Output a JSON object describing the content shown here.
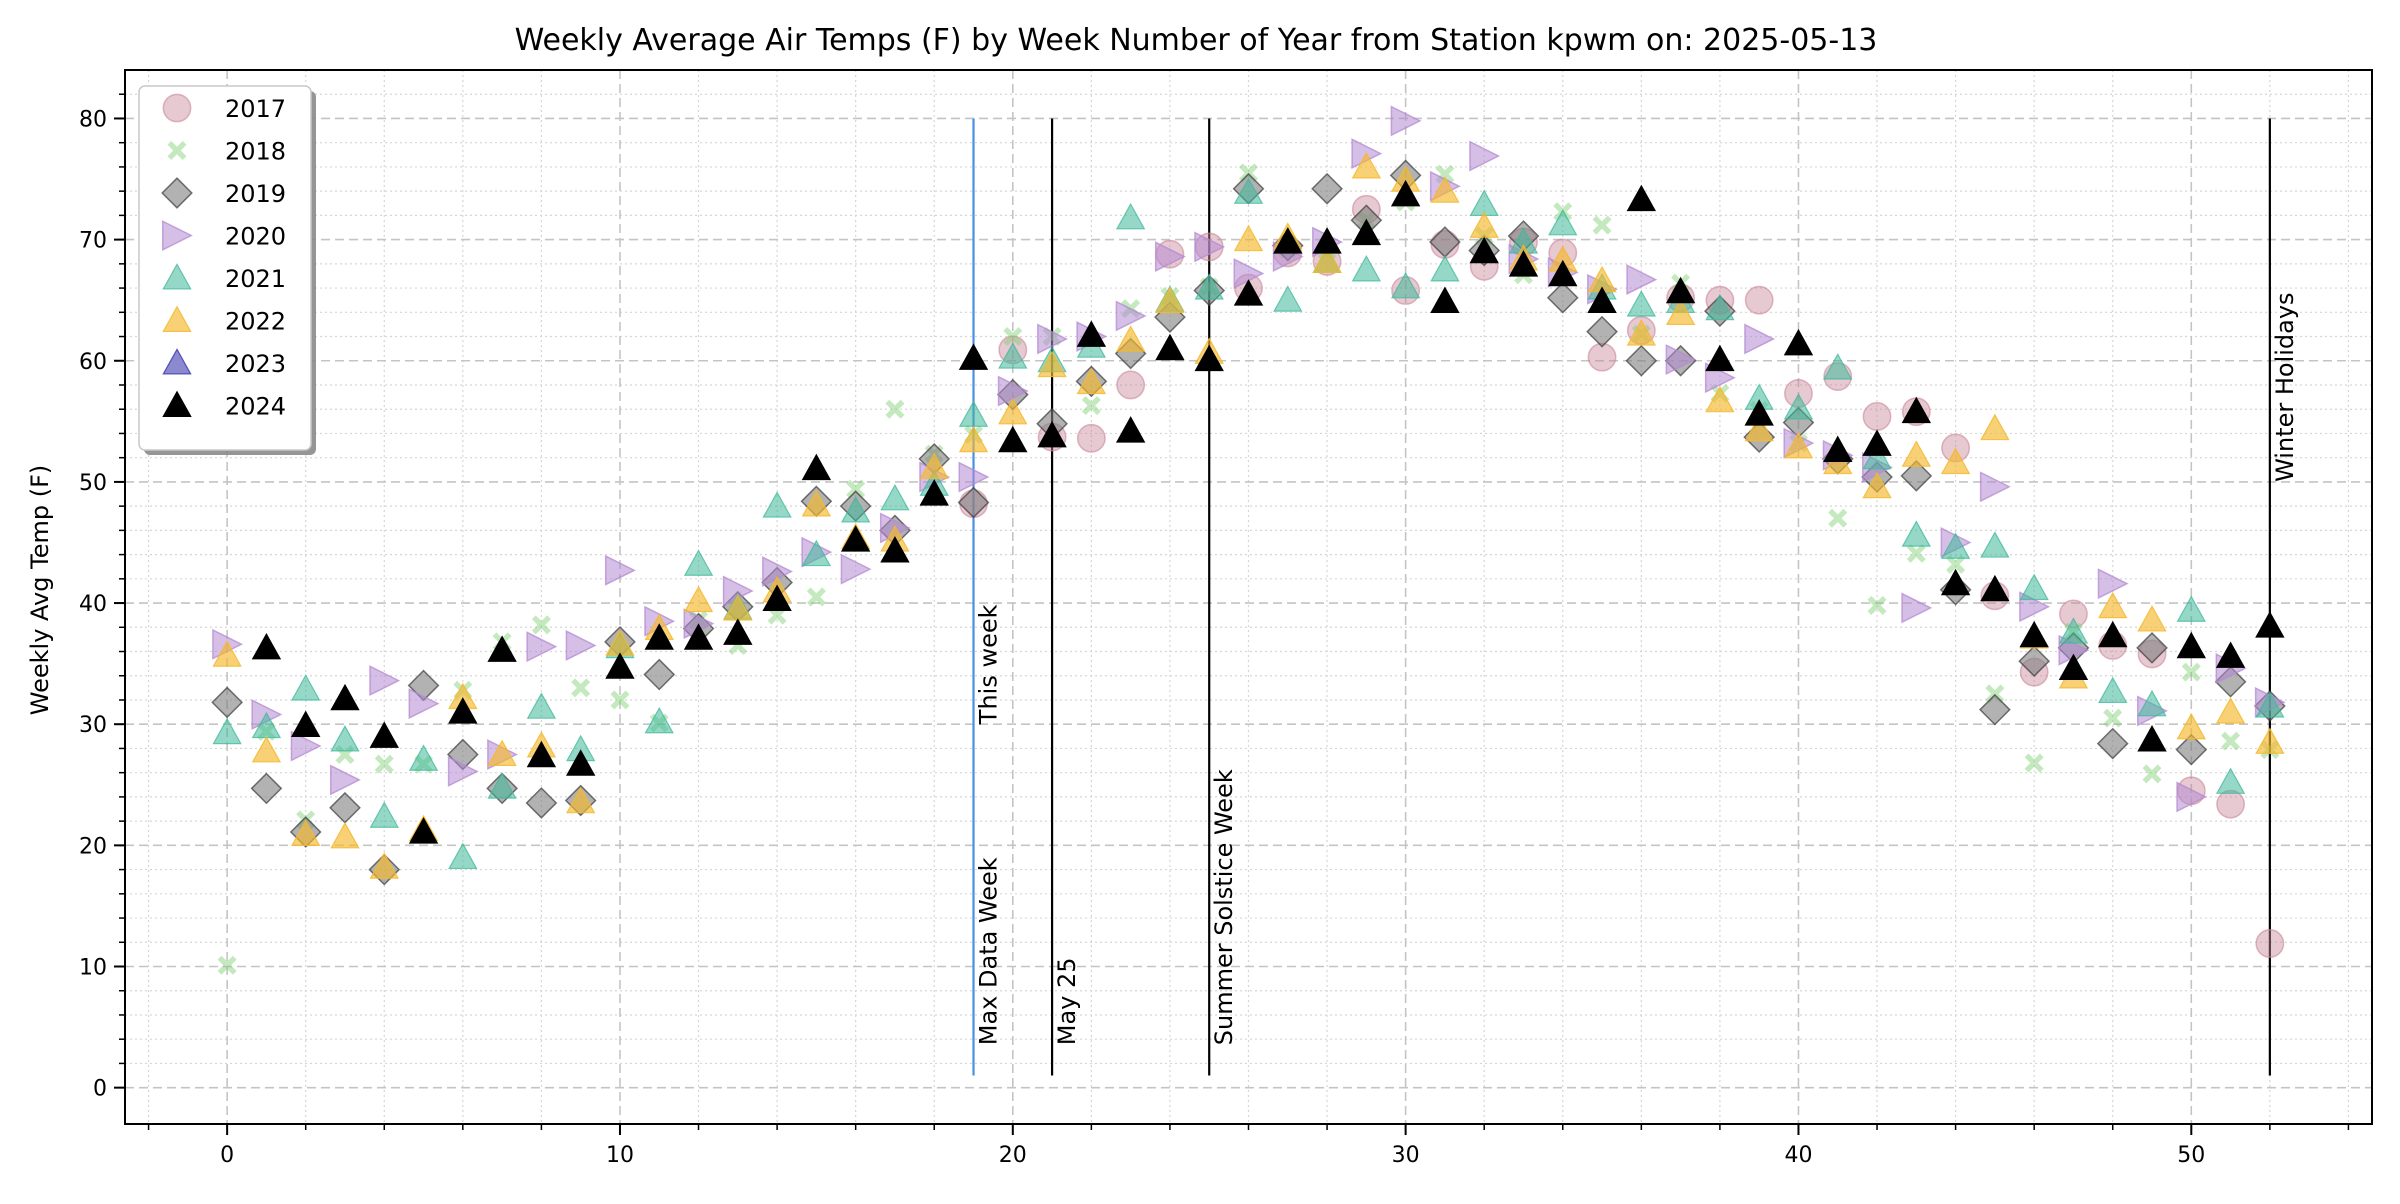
{
  "chart_data": {
    "type": "scatter",
    "title": "Weekly Average Air Temps (F) by Week Number of Year from Station kpwm on: 2025-05-13",
    "xlabel": "",
    "ylabel": "Weekly Avg Temp (F)",
    "xlim": [
      -2.6,
      54.6
    ],
    "ylim": [
      -3,
      84
    ],
    "xticks": [
      0,
      10,
      20,
      30,
      40,
      50
    ],
    "yticks": [
      0,
      10,
      20,
      30,
      40,
      50,
      60,
      70,
      80
    ],
    "grid": true,
    "legend_position": "upper-left",
    "series": [
      {
        "name": "2017",
        "marker": "circle",
        "color": "#c9879a",
        "alpha": 0.45,
        "x": [
          19,
          20,
          21,
          22,
          23,
          24,
          25,
          26,
          27,
          28,
          29,
          30,
          31,
          32,
          33,
          34,
          35,
          36,
          37,
          38,
          39,
          40,
          41,
          42,
          43,
          44,
          45,
          46,
          47,
          48,
          49,
          50,
          51,
          52
        ],
        "y": [
          48.2,
          60.9,
          53.7,
          53.6,
          58.0,
          68.8,
          69.4,
          66.0,
          68.9,
          68.2,
          72.5,
          65.8,
          69.6,
          67.8,
          69.8,
          68.9,
          60.3,
          62.5,
          65.2,
          65.0,
          65.0,
          57.3,
          58.7,
          55.4,
          55.8,
          52.8,
          40.6,
          34.3,
          39.1,
          36.5,
          35.8,
          24.5,
          23.4,
          11.9
        ]
      },
      {
        "name": "2018",
        "marker": "x",
        "color": "#7ccf6e",
        "alpha": 0.45,
        "x": [
          0,
          1,
          2,
          3,
          4,
          5,
          6,
          7,
          8,
          9,
          10,
          11,
          12,
          13,
          14,
          15,
          16,
          17,
          18,
          19,
          20,
          21,
          22,
          23,
          24,
          25,
          26,
          27,
          28,
          29,
          30,
          31,
          32,
          33,
          34,
          35,
          36,
          37,
          38,
          39,
          40,
          41,
          42,
          43,
          44,
          45,
          46,
          47,
          48,
          49,
          50,
          51,
          52
        ],
        "y": [
          10.1,
          29.4,
          22.1,
          27.5,
          26.7,
          26.7,
          32.8,
          36.8,
          38.2,
          33.0,
          32.0,
          30.1,
          38.6,
          36.5,
          39.0,
          40.5,
          49.4,
          56.0,
          52.3,
          53.9,
          62.0,
          62.0,
          56.3,
          64.3,
          65.3,
          66.1,
          75.5,
          69.2,
          69.1,
          71.6,
          73.1,
          75.4,
          70.3,
          67.1,
          72.3,
          71.2,
          62.2,
          66.4,
          57.3,
          55.9,
          53.2,
          47.0,
          39.8,
          44.1,
          43.2,
          32.5,
          26.8,
          37.6,
          30.5,
          25.9,
          34.3,
          28.6,
          27.9
        ]
      },
      {
        "name": "2019",
        "marker": "diamond",
        "color": "#7f7f7f",
        "alpha": 0.6,
        "x": [
          0,
          1,
          2,
          3,
          4,
          5,
          6,
          7,
          8,
          9,
          10,
          11,
          12,
          13,
          14,
          15,
          16,
          17,
          18,
          19,
          20,
          21,
          22,
          23,
          24,
          25,
          26,
          27,
          28,
          29,
          30,
          31,
          32,
          33,
          34,
          35,
          36,
          37,
          38,
          39,
          40,
          41,
          42,
          43,
          44,
          45,
          46,
          47,
          48,
          49,
          50,
          51,
          52
        ],
        "y": [
          31.8,
          24.7,
          21.1,
          23.1,
          18.0,
          33.2,
          27.5,
          24.7,
          23.5,
          23.7,
          36.8,
          34.1,
          37.9,
          39.7,
          41.7,
          48.4,
          48.0,
          46.0,
          51.9,
          48.3,
          57.2,
          54.8,
          58.3,
          60.6,
          63.6,
          65.8,
          74.2,
          69.5,
          74.2,
          71.6,
          75.3,
          69.8,
          69.1,
          70.3,
          65.2,
          62.4,
          60.0,
          60.0,
          64.1,
          53.7,
          54.9,
          51.9,
          50.4,
          50.5,
          41.1,
          31.2,
          35.2,
          36.3,
          28.4,
          36.3,
          27.9,
          33.5,
          31.5
        ]
      },
      {
        "name": "2020",
        "marker": "triangle-right",
        "color": "#b48ad1",
        "alpha": 0.55,
        "x": [
          0,
          1,
          2,
          3,
          4,
          5,
          6,
          7,
          8,
          9,
          10,
          11,
          12,
          13,
          14,
          15,
          16,
          17,
          18,
          19,
          20,
          21,
          22,
          23,
          24,
          25,
          26,
          27,
          28,
          29,
          30,
          31,
          32,
          33,
          34,
          35,
          36,
          37,
          38,
          39,
          40,
          41,
          42,
          43,
          44,
          45,
          46,
          47,
          48,
          49,
          50,
          51,
          52
        ],
        "y": [
          36.6,
          30.8,
          28.2,
          25.4,
          33.6,
          31.7,
          26.1,
          27.5,
          36.4,
          36.5,
          42.7,
          38.5,
          38.3,
          41.0,
          42.6,
          44.2,
          42.8,
          46.2,
          50.4,
          50.4,
          57.5,
          61.8,
          62.0,
          63.7,
          68.6,
          69.4,
          67.2,
          68.6,
          69.8,
          77.1,
          79.8,
          74.4,
          76.9,
          68.4,
          67.3,
          65.9,
          66.7,
          60.1,
          58.6,
          61.8,
          53.2,
          52.2,
          51.2,
          39.6,
          45.0,
          49.6,
          39.7,
          36.1,
          41.6,
          31.1,
          24.0,
          34.6,
          31.8
        ]
      },
      {
        "name": "2021",
        "marker": "triangle-up",
        "color": "#3fb89b",
        "alpha": 0.55,
        "x": [
          0,
          1,
          2,
          3,
          4,
          5,
          6,
          7,
          8,
          9,
          10,
          11,
          12,
          13,
          14,
          15,
          16,
          17,
          18,
          19,
          20,
          21,
          22,
          23,
          24,
          25,
          26,
          27,
          28,
          29,
          30,
          31,
          32,
          33,
          34,
          35,
          36,
          37,
          38,
          39,
          40,
          41,
          42,
          43,
          44,
          45,
          46,
          47,
          48,
          49,
          50,
          51,
          52
        ],
        "y": [
          29.3,
          29.8,
          32.9,
          28.7,
          22.4,
          27.1,
          19.0,
          24.8,
          31.4,
          27.9,
          36.4,
          30.2,
          43.2,
          39.6,
          48.0,
          44.0,
          47.6,
          48.6,
          49.8,
          55.5,
          60.3,
          60.0,
          61.2,
          71.8,
          65.0,
          66.0,
          73.9,
          65.0,
          68.2,
          67.5,
          66.1,
          67.5,
          72.9,
          69.8,
          71.3,
          66.0,
          64.6,
          64.9,
          64.3,
          56.9,
          56.1,
          59.4,
          52.0,
          45.6,
          44.6,
          44.7,
          41.2,
          37.6,
          32.7,
          31.6,
          39.4,
          25.2,
          31.5
        ]
      },
      {
        "name": "2022",
        "marker": "triangle-up",
        "color": "#f5b82e",
        "alpha": 0.65,
        "x": [
          0,
          1,
          2,
          3,
          4,
          5,
          6,
          7,
          8,
          9,
          10,
          11,
          12,
          13,
          14,
          15,
          16,
          17,
          18,
          19,
          20,
          21,
          22,
          23,
          24,
          25,
          26,
          27,
          28,
          29,
          30,
          31,
          32,
          33,
          34,
          35,
          36,
          37,
          38,
          39,
          40,
          41,
          42,
          43,
          44,
          45,
          46,
          47,
          48,
          49,
          50,
          51,
          52
        ],
        "y": [
          35.7,
          27.8,
          20.9,
          20.7,
          18.2,
          21.3,
          32.2,
          27.5,
          28.2,
          23.6,
          36.6,
          37.9,
          40.2,
          39.5,
          41.0,
          48.1,
          45.4,
          45.2,
          51.2,
          53.4,
          55.7,
          59.6,
          58.2,
          61.7,
          64.9,
          60.7,
          70.0,
          70.2,
          68.2,
          76.0,
          74.9,
          74.0,
          71.1,
          68.4,
          68.3,
          66.6,
          62.2,
          63.9,
          56.7,
          54.3,
          52.9,
          51.6,
          49.6,
          52.2,
          51.6,
          54.4,
          37.2,
          33.9,
          39.7,
          38.6,
          29.7,
          31.0,
          28.5
        ]
      },
      {
        "name": "2023",
        "marker": "triangle-up",
        "color": "#2e2aa8",
        "alpha": 0.55,
        "x": [],
        "y": []
      },
      {
        "name": "2024",
        "marker": "triangle-up",
        "color": "#000000",
        "alpha": 1.0,
        "x": [
          1,
          2,
          3,
          4,
          5,
          6,
          7,
          8,
          9,
          10,
          11,
          12,
          13,
          14,
          15,
          16,
          17,
          18,
          19,
          20,
          21,
          22,
          23,
          24,
          25,
          26,
          27,
          28,
          29,
          30,
          31,
          32,
          33,
          34,
          35,
          36,
          37,
          38,
          39,
          40,
          41,
          42,
          43,
          44,
          45,
          46,
          47,
          48,
          49,
          50,
          51,
          52
        ],
        "y": [
          36.3,
          29.9,
          32.1,
          29.0,
          21.1,
          31.0,
          36.1,
          27.4,
          26.7,
          34.7,
          37.1,
          37.1,
          37.5,
          40.3,
          51.1,
          45.2,
          44.3,
          49.0,
          60.2,
          53.4,
          53.8,
          62.1,
          54.2,
          61.0,
          60.1,
          65.5,
          69.8,
          69.8,
          70.5,
          73.7,
          64.9,
          69.0,
          67.9,
          67.1,
          64.9,
          73.3,
          65.7,
          60.1,
          55.6,
          61.4,
          52.6,
          53.1,
          55.8,
          41.6,
          41.1,
          37.3,
          34.6,
          37.3,
          28.7,
          36.4,
          35.6,
          38.1
        ]
      }
    ],
    "vertical_lines": [
      {
        "x": 19,
        "label": "This week",
        "label_y": 30,
        "y0": 1,
        "y1": 80,
        "color": "#4a90e2"
      },
      {
        "x": 19,
        "label": "Max Data Week",
        "label_y": 3.5,
        "y0": 1,
        "y1": 80,
        "color": "#4a90e2"
      },
      {
        "x": 21,
        "label": "May 25",
        "label_y": 3.5,
        "y0": 1,
        "y1": 80,
        "color": "#000000"
      },
      {
        "x": 25,
        "label": "Summer Solstice Week",
        "label_y": 3.5,
        "y0": 1,
        "y1": 80,
        "color": "#000000"
      },
      {
        "x": 52,
        "label": "Winter Holidays",
        "label_y": 50,
        "y0": 1,
        "y1": 80,
        "color": "#000000"
      }
    ]
  }
}
